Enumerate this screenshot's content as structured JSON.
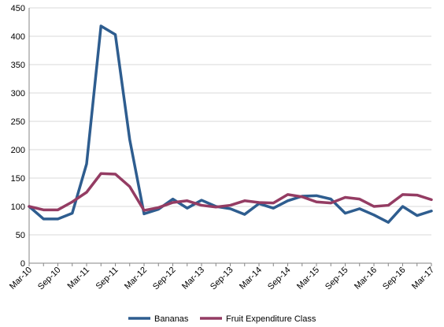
{
  "chart_data": {
    "type": "line",
    "title": "",
    "xlabel": "",
    "ylabel": "",
    "ylim": [
      0,
      450
    ],
    "y_ticks": [
      0,
      50,
      100,
      150,
      200,
      250,
      300,
      350,
      400,
      450
    ],
    "grid": "horizontal",
    "legend_position": "bottom",
    "x_tick_labels": [
      "Mar-10",
      "Sep-10",
      "Mar-11",
      "Sep-11",
      "Mar-12",
      "Sep-12",
      "Mar-13",
      "Sep-13",
      "Mar-14",
      "Sep-14",
      "Mar-15",
      "Sep-15",
      "Mar-16",
      "Sep-16",
      "Mar-17"
    ],
    "x": [
      "Mar-10",
      "Jun-10",
      "Sep-10",
      "Dec-10",
      "Mar-11",
      "Jun-11",
      "Sep-11",
      "Dec-11",
      "Mar-12",
      "Jun-12",
      "Sep-12",
      "Dec-12",
      "Mar-13",
      "Jun-13",
      "Sep-13",
      "Dec-13",
      "Mar-14",
      "Jun-14",
      "Sep-14",
      "Dec-14",
      "Mar-15",
      "Jun-15",
      "Sep-15",
      "Dec-15",
      "Mar-16",
      "Jun-16",
      "Sep-16",
      "Dec-16",
      "Mar-17"
    ],
    "series": [
      {
        "name": "Bananas",
        "color": "#2E5D8F",
        "values": [
          100,
          78,
          78,
          88,
          175,
          418,
          403,
          218,
          87,
          95,
          113,
          97,
          111,
          100,
          96,
          86,
          105,
          97,
          110,
          118,
          119,
          113,
          88,
          96,
          85,
          72,
          100,
          84,
          92
        ]
      },
      {
        "name": "Fruit Expenditure Class",
        "color": "#943C63",
        "values": [
          100,
          94,
          94,
          108,
          125,
          158,
          157,
          135,
          93,
          98,
          107,
          110,
          102,
          99,
          102,
          110,
          107,
          106,
          121,
          117,
          108,
          106,
          116,
          113,
          100,
          102,
          121,
          120,
          112
        ]
      }
    ]
  }
}
